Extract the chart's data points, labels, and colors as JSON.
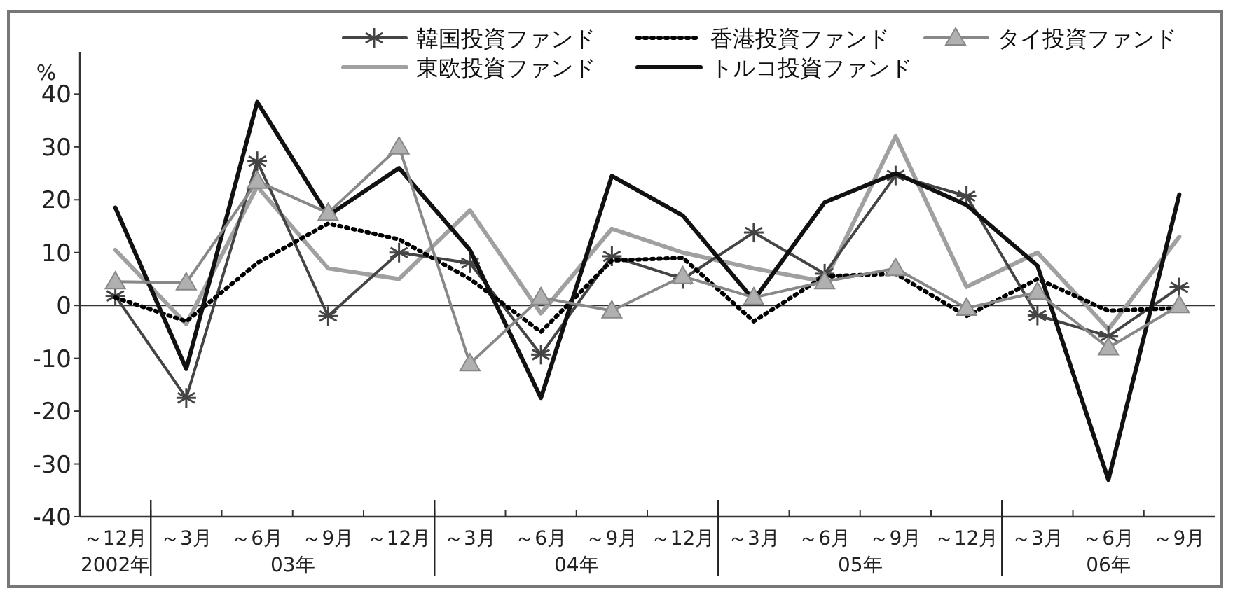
{
  "chart_data": {
    "type": "line",
    "ylabel": "%",
    "categories": [
      "～12月",
      "～3月",
      "～6月",
      "～9月",
      "～12月",
      "～3月",
      "～6月",
      "～9月",
      "～12月",
      "～3月",
      "～6月",
      "～9月",
      "～12月",
      "～3月",
      "～6月",
      "～9月"
    ],
    "annotations": [
      "2002年",
      "03年",
      "04年",
      "05年",
      "06年"
    ],
    "ylim": [
      -40,
      48
    ],
    "yticks": [
      -40,
      -30,
      -20,
      -10,
      0,
      10,
      20,
      30,
      40
    ],
    "ref_lines": [
      {
        "axis": "y",
        "value": 0,
        "color": "#333333"
      }
    ],
    "legend": "top",
    "grid": false,
    "series": [
      {
        "name": "韓国投資ファンド",
        "color": "#444444",
        "marker": "cross",
        "line_style": "solid",
        "values": [
          1.8,
          -17.5,
          27.3,
          -2,
          10,
          8,
          -9.3,
          9.3,
          5,
          13.8,
          6,
          24.6,
          20.7,
          -1.9,
          -5.8,
          3.4
        ]
      },
      {
        "name": "香港投資ファンド",
        "color": "#000000",
        "marker": "none",
        "line_style": "dotted",
        "values": [
          1.5,
          -3,
          8,
          15.5,
          12.5,
          5,
          -5,
          8.5,
          9,
          -3,
          5.5,
          6,
          -2,
          5,
          -1,
          -0.5
        ]
      },
      {
        "name": "タイ投資ファンド",
        "color": "#888888",
        "marker": "triangle",
        "line_style": "solid",
        "values": [
          4.5,
          4.3,
          23.5,
          17.5,
          30,
          -11,
          1.5,
          -1,
          5.5,
          1.5,
          4.5,
          7,
          -0.5,
          2.5,
          -8,
          0
        ]
      },
      {
        "name": "東欧投資ファンド",
        "color": "#a0a0a0",
        "marker": "none",
        "line_style": "solid",
        "values": [
          10.5,
          -3.5,
          22.5,
          7,
          5,
          18,
          -1.5,
          14.5,
          10,
          7,
          4.5,
          32,
          3.5,
          10,
          -4.5,
          13
        ]
      },
      {
        "name": "トルコ投資ファンド",
        "color": "#111111",
        "marker": "none",
        "line_style": "solid",
        "values": [
          18.5,
          -12,
          38.5,
          17,
          26,
          10.5,
          -17.5,
          24.5,
          17,
          1,
          19.5,
          25,
          19,
          7.5,
          -33,
          21
        ]
      }
    ]
  }
}
